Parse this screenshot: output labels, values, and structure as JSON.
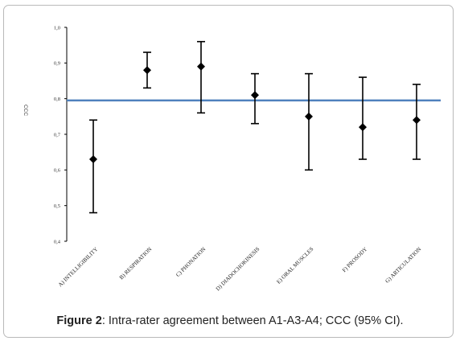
{
  "caption": {
    "figure_label": "Figure 2",
    "text": ": Intra-rater agreement between A1-A3-A4; CCC (95% CI)."
  },
  "colors": {
    "reference_line": "#4f81bd",
    "markers": "#000000",
    "axis": "#000000",
    "frame_border": "#b9b9b9"
  },
  "chart_data": {
    "type": "scatter",
    "ylabel": "CCC",
    "xlabel": "",
    "ylim": [
      0.4,
      1.0
    ],
    "y_ticks": [
      "0,4",
      "0,5",
      "0,6",
      "0,7",
      "0,8",
      "0,9",
      "1,0"
    ],
    "y_tick_values": [
      0.4,
      0.5,
      0.6,
      0.7,
      0.8,
      0.9,
      1.0
    ],
    "categories": [
      "A) INTELLIGIBILITY",
      "B) RESPIRATION",
      "C) PHONATION",
      "D) DIADOCHOKINESIS",
      "E) ORAL MUSCLES",
      "F) PROSODY",
      "G) ARTICULATION"
    ],
    "series": [
      {
        "values": [
          0.63,
          0.88,
          0.89,
          0.81,
          0.75,
          0.72,
          0.74
        ],
        "ci_lower": [
          0.48,
          0.83,
          0.76,
          0.73,
          0.6,
          0.63,
          0.63
        ],
        "ci_upper": [
          0.74,
          0.93,
          0.96,
          0.87,
          0.87,
          0.86,
          0.84
        ]
      }
    ],
    "reference_line": 0.795,
    "marker": "diamond",
    "grid": false,
    "legend": "none"
  }
}
